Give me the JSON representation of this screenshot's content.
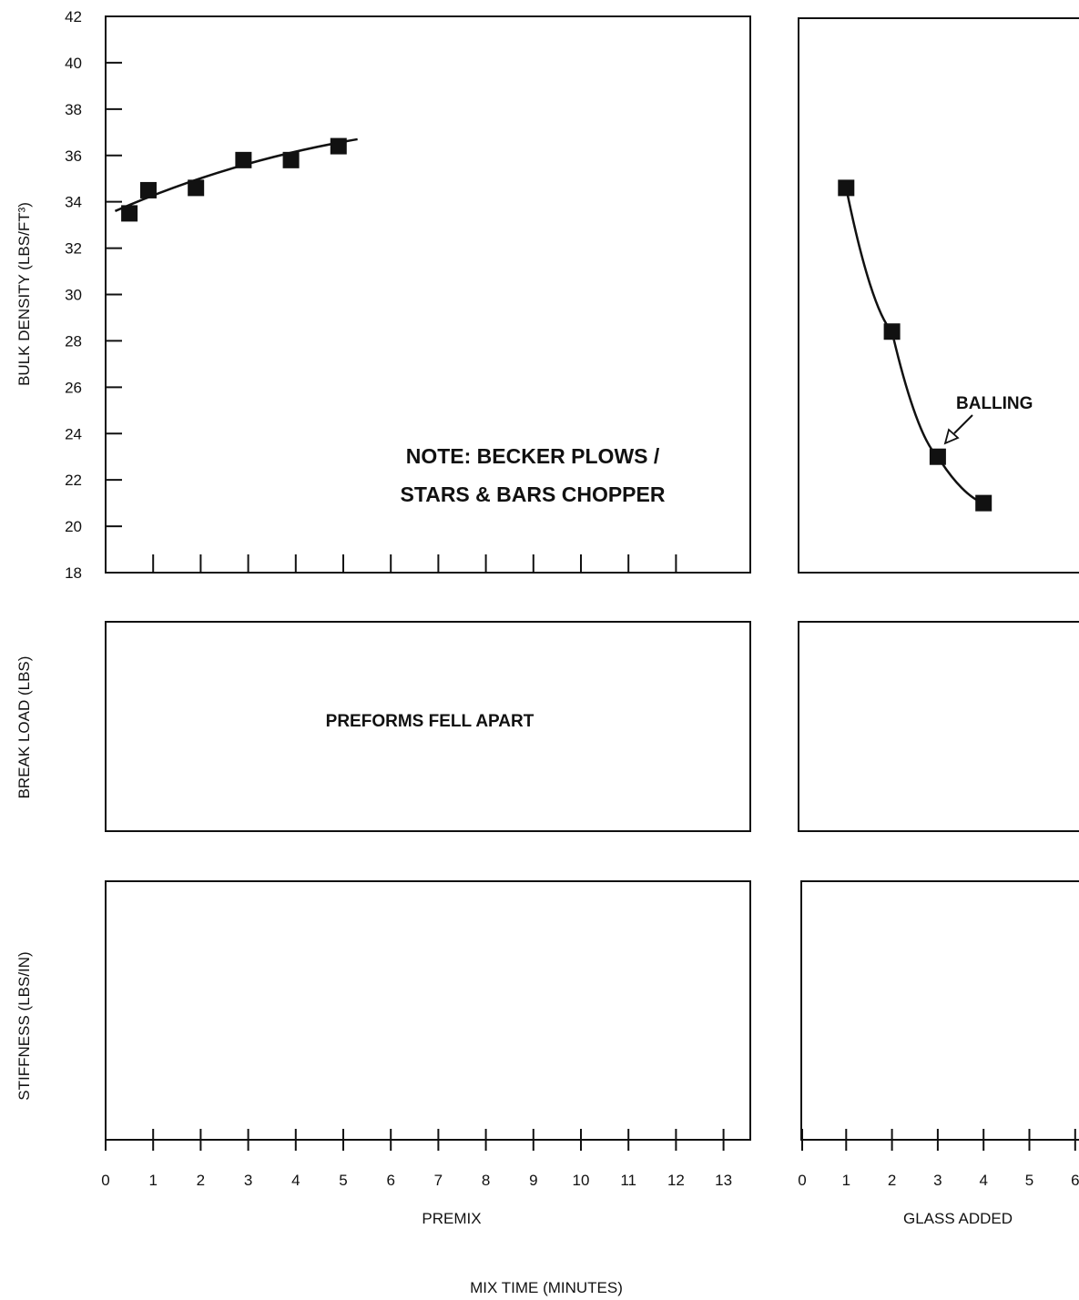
{
  "chart_data": {
    "type": "scatter",
    "xlabel": "MIX TIME (MINUTES)",
    "note": [
      "NOTE: BECKER PLOWS /",
      "STARS & BARS CHOPPER"
    ],
    "panels": {
      "premix": {
        "label": "PREMIX",
        "xlim": [
          0,
          13
        ],
        "x_ticks": [
          "0",
          "1",
          "2",
          "3",
          "4",
          "5",
          "6",
          "7",
          "8",
          "9",
          "10",
          "11",
          "12",
          "13"
        ]
      },
      "glass": {
        "label": "GLASS ADDED",
        "xlim": [
          0,
          6
        ],
        "x_ticks": [
          "0",
          "1",
          "2",
          "3",
          "4",
          "5",
          "6"
        ]
      }
    },
    "rows": {
      "bulk_density": {
        "ylabel": "BULK DENSITY (LBS/FT³)",
        "ylim": [
          18,
          42
        ],
        "y_ticks": [
          "18",
          "20",
          "22",
          "24",
          "26",
          "28",
          "30",
          "32",
          "34",
          "36",
          "38",
          "40",
          "42"
        ]
      },
      "break_load": {
        "ylabel": "BREAK LOAD (LBS)",
        "annotation": "PREFORMS FELL APART"
      },
      "stiffness": {
        "ylabel": "STIFFNESS (LBS/IN)"
      }
    },
    "series": [
      {
        "panel": "premix",
        "row": "bulk_density",
        "x": [
          0.5,
          0.9,
          1.9,
          2.9,
          3.9,
          4.9
        ],
        "y": [
          33.5,
          34.5,
          34.6,
          35.8,
          35.8,
          36.4
        ]
      },
      {
        "panel": "glass",
        "row": "bulk_density",
        "x": [
          1,
          2,
          3,
          4
        ],
        "y": [
          34.6,
          28.4,
          23.0,
          21.0
        ],
        "annotation": "BALLING"
      }
    ]
  }
}
